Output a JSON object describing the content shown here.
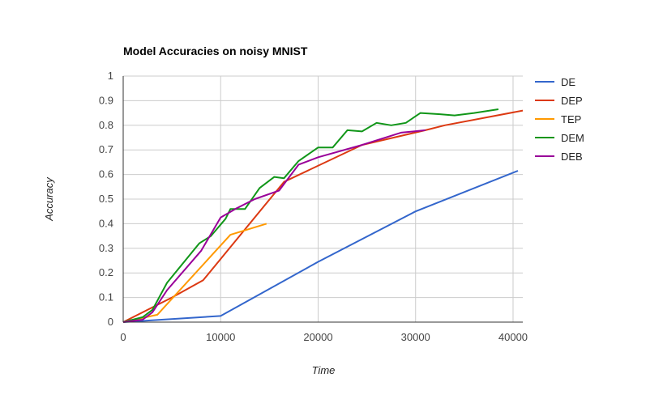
{
  "chart_data": {
    "type": "line",
    "title": "Model Accuracies on noisy MNIST",
    "xlabel": "Time",
    "ylabel": "Accuracy",
    "xlim": [
      0,
      41000
    ],
    "ylim": [
      0,
      1
    ],
    "xticks": [
      0,
      10000,
      20000,
      30000,
      40000
    ],
    "xtick_labels": [
      "0",
      "10000",
      "20000",
      "30000",
      "40000"
    ],
    "yticks": [
      0,
      0.1,
      0.2,
      0.3,
      0.4,
      0.5,
      0.6,
      0.7,
      0.8,
      0.9,
      1
    ],
    "ytick_labels": [
      "0",
      "0.1",
      "0.2",
      "0.3",
      "0.4",
      "0.5",
      "0.6",
      "0.7",
      "0.8",
      "0.9",
      "1"
    ],
    "grid": true,
    "legend_position": "right",
    "series": [
      {
        "name": "DE",
        "color": "#3366cc",
        "x": [
          0,
          10000,
          20000,
          30000,
          40500
        ],
        "y": [
          0,
          0.025,
          0.245,
          0.45,
          0.615
        ]
      },
      {
        "name": "DEP",
        "color": "#dc3912",
        "x": [
          0,
          5000,
          8200,
          16500,
          24500,
          31000,
          33000,
          41000
        ],
        "y": [
          0,
          0.1,
          0.17,
          0.57,
          0.72,
          0.78,
          0.8,
          0.86
        ]
      },
      {
        "name": "TEP",
        "color": "#ff9900",
        "x": [
          0,
          3500,
          11000,
          14700
        ],
        "y": [
          0,
          0.03,
          0.355,
          0.4
        ]
      },
      {
        "name": "DEM",
        "color": "#109618",
        "x": [
          0,
          2000,
          3000,
          4500,
          7800,
          9000,
          10500,
          11000,
          12500,
          14000,
          15500,
          16500,
          18000,
          20000,
          21500,
          23000,
          24500,
          26000,
          27500,
          29000,
          30500,
          32500,
          34000,
          36000,
          38500
        ],
        "y": [
          0,
          0.02,
          0.05,
          0.16,
          0.32,
          0.35,
          0.42,
          0.46,
          0.46,
          0.545,
          0.59,
          0.585,
          0.655,
          0.71,
          0.71,
          0.78,
          0.775,
          0.81,
          0.8,
          0.81,
          0.85,
          0.845,
          0.84,
          0.85,
          0.865
        ]
      },
      {
        "name": "DEB",
        "color": "#990099",
        "x": [
          0,
          2000,
          3000,
          4500,
          8000,
          10000,
          11500,
          13500,
          16000,
          18000,
          20000,
          24500,
          28500,
          31000
        ],
        "y": [
          0,
          0.01,
          0.04,
          0.13,
          0.29,
          0.425,
          0.46,
          0.5,
          0.535,
          0.64,
          0.67,
          0.72,
          0.77,
          0.78
        ]
      }
    ]
  }
}
